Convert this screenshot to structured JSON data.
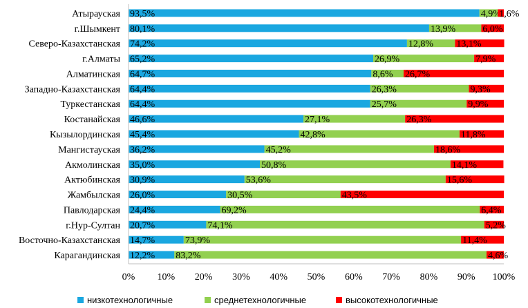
{
  "chart_data": {
    "type": "bar",
    "orientation": "horizontal",
    "stacked": true,
    "normalized": true,
    "categories": [
      "Атырауская",
      "г.Шымкент",
      "Северо-Казахстанская",
      "г.Алматы",
      "Алматинская",
      "Западно-Казахстанская",
      "Туркестанская",
      "Костанайская",
      "Кызылординская",
      "Мангистауская",
      "Акмолинская",
      "Актюбинская",
      "Жамбылская",
      "Павлодарская",
      "г.Нур-Султан",
      "Восточно-Казахстанская",
      "Карагандинская"
    ],
    "series": [
      {
        "name": "низкотехнологичные",
        "color": "#1aa7e0",
        "values": [
          93.5,
          80.1,
          74.2,
          65.2,
          64.7,
          64.4,
          64.4,
          46.6,
          45.4,
          36.2,
          35.0,
          30.9,
          26.0,
          24.4,
          20.7,
          14.7,
          12.2
        ],
        "labels": [
          "93,5%",
          "80,1%",
          "74,2%",
          "65,2%",
          "64,7%",
          "64,4%",
          "64,4%",
          "46,6%",
          "45,4%",
          "36,2%",
          "35,0%",
          "30,9%",
          "26,0%",
          "24,4%",
          "20,7%",
          "14,7%",
          "12,2%"
        ]
      },
      {
        "name": "среднетехнологичные",
        "color": "#92d050",
        "values": [
          4.9,
          13.9,
          12.8,
          26.9,
          8.6,
          26.3,
          25.7,
          27.1,
          42.8,
          45.2,
          50.8,
          53.6,
          30.5,
          69.2,
          74.1,
          73.9,
          83.2
        ],
        "labels": [
          "4,9%",
          "13,9%",
          "12,8%",
          "26,9%",
          "8,6%",
          "26,3%",
          "25,7%",
          "27,1%",
          "42,8%",
          "45,2%",
          "50,8%",
          "53,6%",
          "30,5%",
          "69,2%",
          "74,1%",
          "73,9%",
          "83,2%"
        ]
      },
      {
        "name": "высокотехнологичные",
        "color": "#ff0000",
        "values": [
          1.6,
          6.0,
          13.1,
          7.9,
          26.7,
          9.3,
          9.9,
          26.3,
          11.8,
          18.6,
          14.1,
          15.6,
          43.5,
          6.4,
          5.2,
          11.4,
          4.6
        ],
        "labels": [
          "1,6%",
          "6,0%",
          "13,1%",
          "7,9%",
          "26,7%",
          "9,3%",
          "9,9%",
          "26,3%",
          "11,8%",
          "18,6%",
          "14,1%",
          "15,6%",
          "43,5%",
          "6,4%",
          "5,2%",
          "11,4%",
          "4,6%"
        ]
      }
    ],
    "xlim": [
      0,
      100
    ],
    "x_ticks": [
      "0%",
      "10%",
      "20%",
      "30%",
      "40%",
      "50%",
      "60%",
      "70%",
      "80%",
      "90%",
      "100%"
    ],
    "title": "",
    "xlabel": "",
    "ylabel": "",
    "grid": false,
    "legend_position": "bottom"
  }
}
